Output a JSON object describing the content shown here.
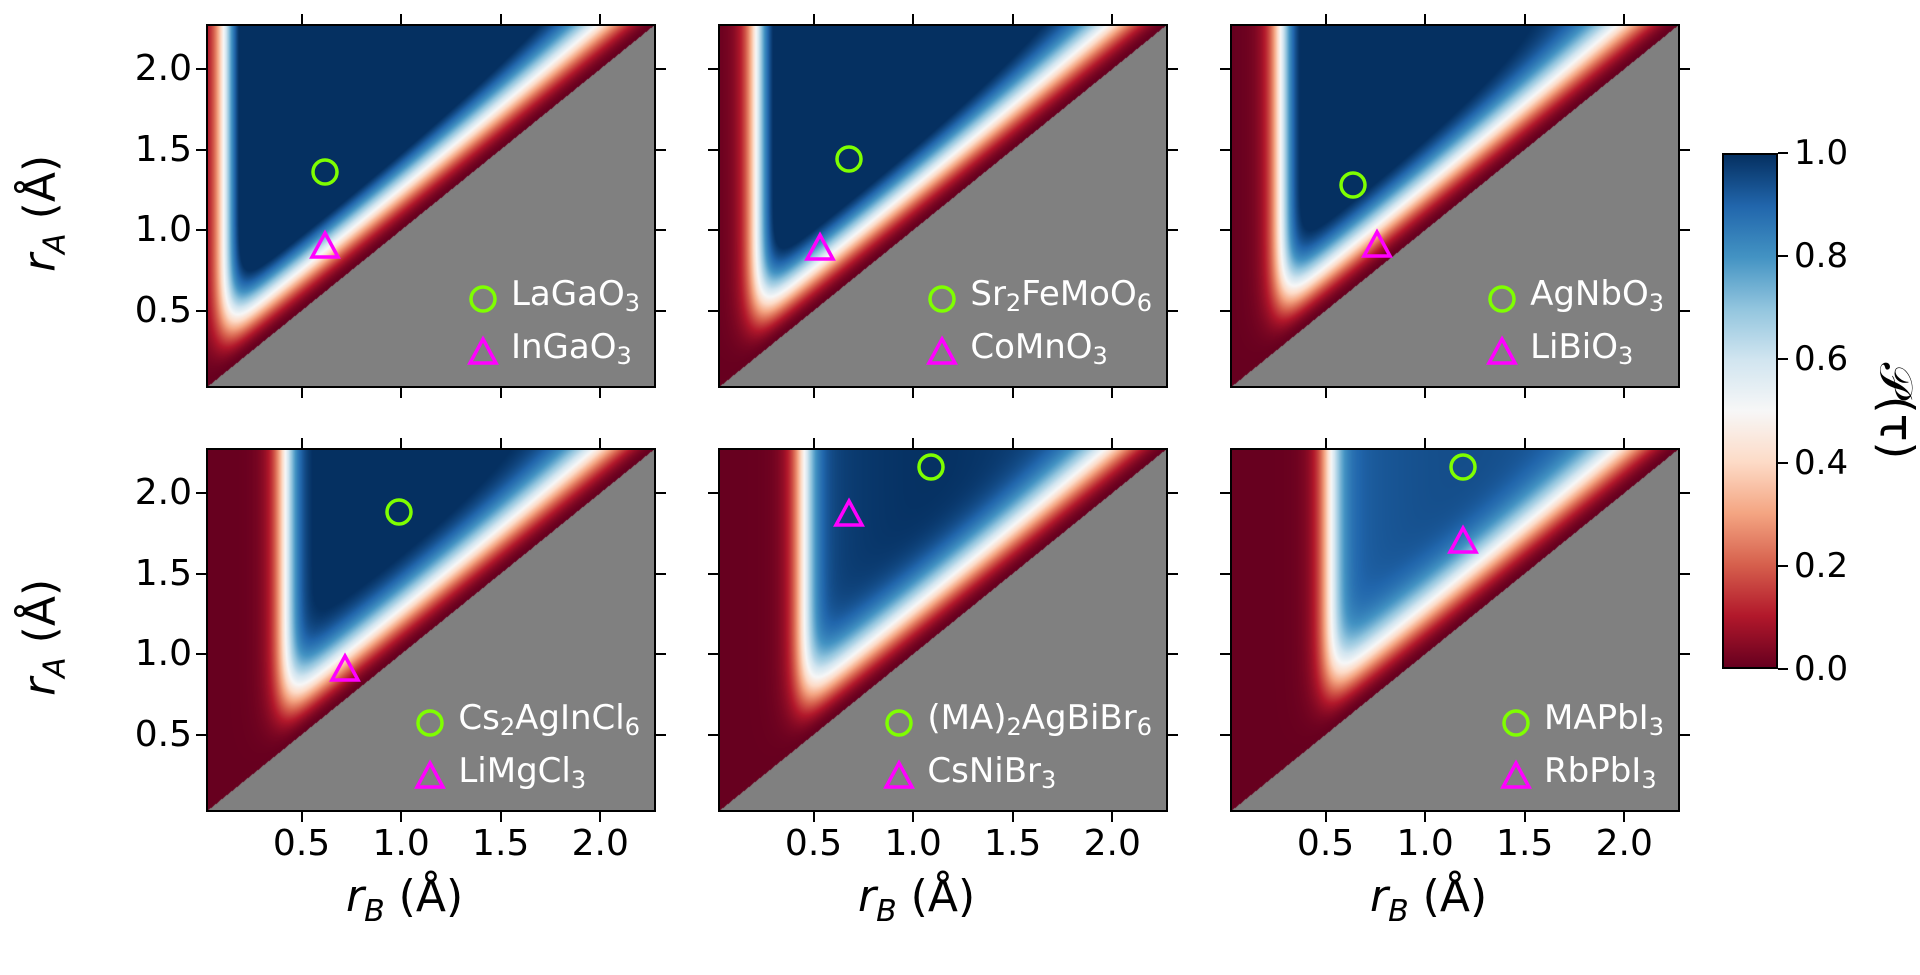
{
  "chart_data": {
    "type": "heatmap",
    "x_ticks": [
      "0.5",
      "1.0",
      "1.5",
      "2.0"
    ],
    "y_ticks": [
      "0.5",
      "1.0",
      "1.5",
      "2.0"
    ],
    "xlim": [
      0.02,
      2.28
    ],
    "ylim": [
      0.02,
      2.28
    ],
    "colorbar": {
      "ticks": [
        "0.0",
        "0.2",
        "0.4",
        "0.6",
        "0.8",
        "1.0"
      ],
      "range": [
        0.0,
        1.0
      ],
      "colormap": "RdBu",
      "label": "𝒫(τ)"
    },
    "panels": [
      {
        "circle": {
          "name": "LaGaO",
          "sub": "3",
          "x": 0.62,
          "y": 1.36
        },
        "triangle": {
          "name": "InGaO",
          "sub": "3",
          "x": 0.62,
          "y": 0.9
        },
        "peak": 0.12
      },
      {
        "circle": {
          "name": "Sr",
          "sub": "2",
          "name2": "FeMoO",
          "sub2": "6",
          "x": 0.68,
          "y": 1.44
        },
        "triangle": {
          "name": "CoMnO",
          "sub": "3",
          "x": 0.53,
          "y": 0.89
        },
        "peak": 0.22
      },
      {
        "circle": {
          "name": "AgNbO",
          "sub": "3",
          "x": 0.64,
          "y": 1.28
        },
        "triangle": {
          "name": "LiBiO",
          "sub": "3",
          "x": 0.76,
          "y": 0.91
        },
        "peak": 0.28
      },
      {
        "circle": {
          "name": "Cs",
          "sub": "2",
          "name2": "AgInCl",
          "sub2": "6",
          "x": 0.99,
          "y": 1.88
        },
        "triangle": {
          "name": "LiMgCl",
          "sub": "3",
          "x": 0.72,
          "y": 0.91
        },
        "peak": 0.42
      },
      {
        "circle": {
          "name": "(MA)",
          "sub": "2",
          "name2": "AgBiBr",
          "sub2": "6",
          "x": 1.09,
          "y": 2.16
        },
        "triangle": {
          "name": "CsNiBr",
          "sub": "3",
          "x": 0.68,
          "y": 1.87
        },
        "peak": 0.45
      },
      {
        "circle": {
          "name": "MAPbI",
          "sub": "3",
          "x": 1.19,
          "y": 2.16
        },
        "triangle": {
          "name": "RbPbI",
          "sub": "3",
          "x": 1.19,
          "y": 1.7
        },
        "peak": 0.52
      }
    ],
    "xlabel_main": "r",
    "xlabel_sub": "B",
    "xlabel_unit": " (Å)",
    "ylabel_main": "r",
    "ylabel_sub": "A",
    "ylabel_unit": " (Å)"
  },
  "colors": {
    "circle": "#7fff00",
    "triangle": "#ff00ff",
    "invalid_region": "#808080"
  }
}
